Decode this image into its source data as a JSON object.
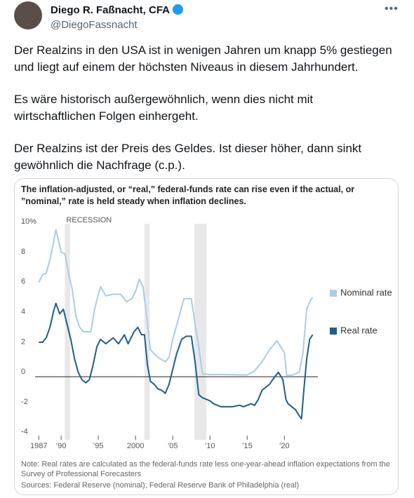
{
  "tweet": {
    "name": "Diego R. Faßnacht, CFA",
    "handle": "@DiegoFassnacht",
    "paragraphs": [
      "Der Realzins in den USA ist in wenigen Jahren um knapp 5% gestiegen und liegt auf einem der höchsten Niveaus in diesem Jahrhundert.",
      "Es wäre historisch außergewöhnlich, wenn dies nicht mit wirtschaftlichen Folgen einhergeht.",
      "Der Realzins ist der Preis des Geldes. Ist dieser höher, dann sinkt gewöhnlich die Nachfrage (c.p.)."
    ]
  },
  "chart_data": {
    "type": "line",
    "title": "The inflation-adjusted, or “real,” federal-funds rate can rise even if the actual, or ”nominal,” rate is held steady when inflation declines.",
    "recession_label": "RECESSION",
    "recessions": [
      [
        1990.5,
        1991.2
      ],
      [
        2001.2,
        2001.9
      ],
      [
        2007.9,
        2009.5
      ]
    ],
    "xlim": [
      1986.5,
      2024.5
    ],
    "xticks": [
      {
        "value": 1987,
        "label": "1987"
      },
      {
        "value": 1990,
        "label": "’90"
      },
      {
        "value": 1995,
        "label": "’95"
      },
      2000,
      {
        "value": 2005,
        "label": "’05"
      },
      {
        "value": 2010,
        "label": "’10"
      },
      {
        "value": 2015,
        "label": "’15"
      },
      {
        "value": 2020,
        "label": "’20"
      }
    ],
    "ylim": [
      -4.2,
      10.2
    ],
    "yticks": [
      -4,
      -2,
      0,
      2,
      4,
      6,
      8,
      {
        "value": 10,
        "label": "10%"
      }
    ],
    "series": [
      {
        "name": "Nominal rate",
        "color": "#a9cde8",
        "x": [
          1987,
          1987.5,
          1988,
          1988.5,
          1989,
          1989.3,
          1989.7,
          1990,
          1990.5,
          1991,
          1991.5,
          1992,
          1992.5,
          1993,
          1994,
          1994.5,
          1995,
          1995.3,
          1996,
          1997,
          1998,
          1998.8,
          1999.5,
          2000,
          2000.5,
          2001,
          2001.5,
          2002,
          2003,
          2004,
          2004.5,
          2005,
          2006,
          2006.5,
          2007.5,
          2008,
          2008.5,
          2009,
          2010,
          2012,
          2015,
          2016,
          2017,
          2018,
          2019,
          2019.5,
          2020,
          2020.3,
          2021,
          2022,
          2022.5,
          2023,
          2023.5,
          2023.8
        ],
        "values": [
          6.3,
          6.8,
          6.9,
          7.8,
          9.0,
          9.8,
          9.0,
          8.3,
          8.2,
          6.9,
          5.8,
          4.0,
          3.3,
          3.0,
          3.0,
          4.5,
          5.5,
          6.0,
          5.4,
          5.5,
          5.5,
          5.0,
          5.2,
          5.7,
          6.5,
          6.0,
          4.0,
          1.8,
          1.3,
          1.0,
          1.3,
          2.5,
          4.3,
          5.2,
          5.2,
          3.5,
          2.0,
          0.2,
          0.15,
          0.15,
          0.12,
          0.4,
          1.0,
          1.8,
          2.4,
          2.0,
          1.6,
          0.1,
          0.1,
          0.3,
          1.6,
          4.5,
          5.1,
          5.3
        ]
      },
      {
        "name": "Real rate",
        "color": "#1d5e8a",
        "x": [
          1987,
          1987.5,
          1988,
          1988.5,
          1989,
          1989.3,
          1989.8,
          1990.3,
          1990.8,
          1991.3,
          1991.8,
          1992.3,
          1992.8,
          1993.3,
          1993.8,
          1994.3,
          1994.8,
          1995.3,
          1996,
          1997,
          1997.7,
          1998.5,
          1999,
          1999.8,
          2000.3,
          2000.8,
          2001.2,
          2001.6,
          2002,
          2002.5,
          2003,
          2003.5,
          2004,
          2004.5,
          2005,
          2005.5,
          2006.2,
          2006.8,
          2007.5,
          2008,
          2008.5,
          2009,
          2010,
          2010.5,
          2011.5,
          2012,
          2013,
          2014,
          2014.5,
          2015.5,
          2016,
          2016.5,
          2017,
          2018,
          2018.7,
          2019.2,
          2019.8,
          2020.2,
          2020.5,
          2021.5,
          2022,
          2022.3,
          2022.6,
          2023,
          2023.4,
          2023.8
        ],
        "values": [
          2.3,
          2.3,
          2.6,
          3.3,
          4.4,
          4.9,
          4.2,
          4.5,
          3.5,
          2.5,
          1.2,
          0.3,
          -0.2,
          -0.4,
          -0.2,
          0.8,
          2.0,
          2.5,
          2.2,
          2.6,
          2.2,
          2.8,
          2.2,
          3.0,
          3.3,
          2.8,
          2.8,
          0.8,
          -0.3,
          -0.5,
          -0.8,
          -0.9,
          -1.1,
          -0.5,
          0.5,
          1.5,
          2.5,
          2.7,
          2.7,
          1.0,
          -1.2,
          -1.4,
          -1.6,
          -1.8,
          -2.0,
          -2.0,
          -2.0,
          -1.9,
          -2.0,
          -1.8,
          -1.9,
          -1.5,
          -0.9,
          -0.5,
          0.0,
          0.3,
          -0.2,
          -1.5,
          -1.8,
          -2.2,
          -2.6,
          -2.8,
          -1.0,
          1.2,
          2.5,
          2.8
        ]
      }
    ],
    "note": "Note: Real rates are calculated as the federal-funds rate less one-year-ahead inflation expectations from the Survey of Professional Forecasters",
    "sources": "Sources: Federal Reserve (nominal); Federal Reserve Bank of Philadelphia (real)"
  }
}
